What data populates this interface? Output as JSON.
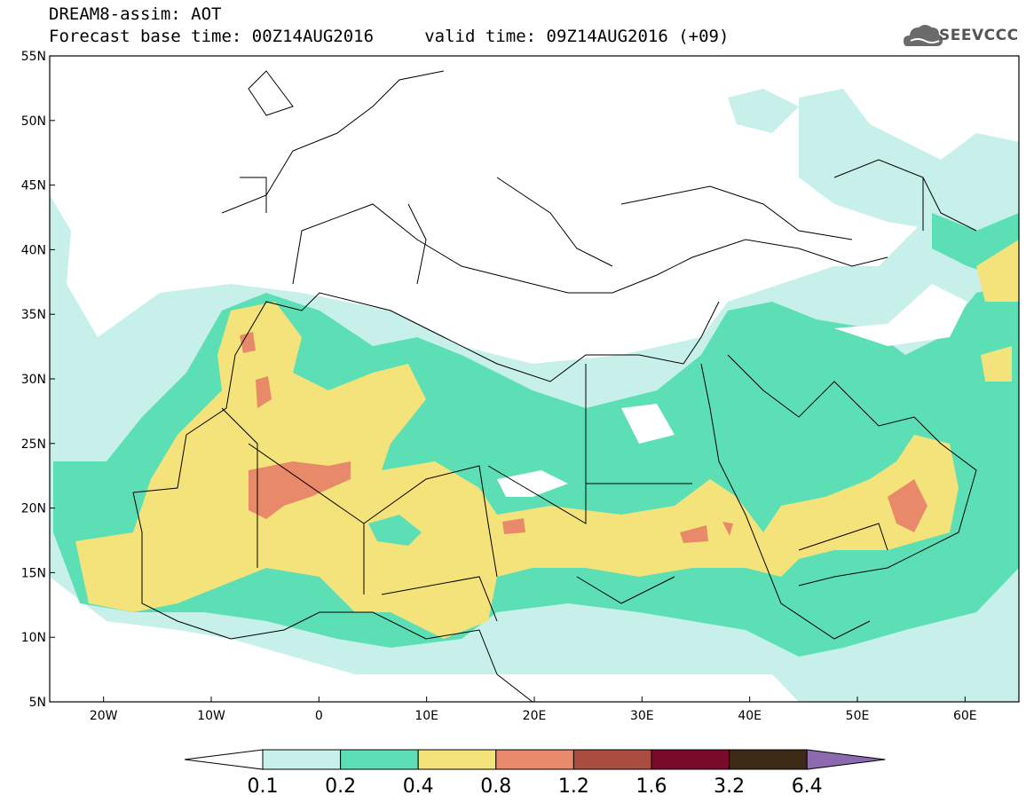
{
  "header": {
    "title_line1": "DREAM8-assim: AOT",
    "title_line2": "Forecast base time: 00Z14AUG2016     valid time: 09Z14AUG2016 (+09)",
    "logo_text": "SEEVCCC"
  },
  "map": {
    "lon_range": [
      -25,
      65
    ],
    "lat_range": [
      5,
      55
    ],
    "lat_ticks": [
      "55N",
      "50N",
      "45N",
      "40N",
      "35N",
      "30N",
      "25N",
      "20N",
      "15N",
      "10N",
      "5N"
    ],
    "lon_ticks": [
      "20W",
      "10W",
      "0",
      "10E",
      "20E",
      "30E",
      "40E",
      "50E",
      "60E"
    ]
  },
  "colorbar": {
    "labels": [
      "0.1",
      "0.2",
      "0.4",
      "0.8",
      "1.2",
      "1.6",
      "3.2",
      "6.4"
    ],
    "colors": [
      "#ffffff",
      "#c7f0ea",
      "#5ddfb5",
      "#f4e37a",
      "#e88a6a",
      "#aa4c3f",
      "#7a0a2a",
      "#3c2a16",
      "#8d6ab0"
    ]
  }
}
